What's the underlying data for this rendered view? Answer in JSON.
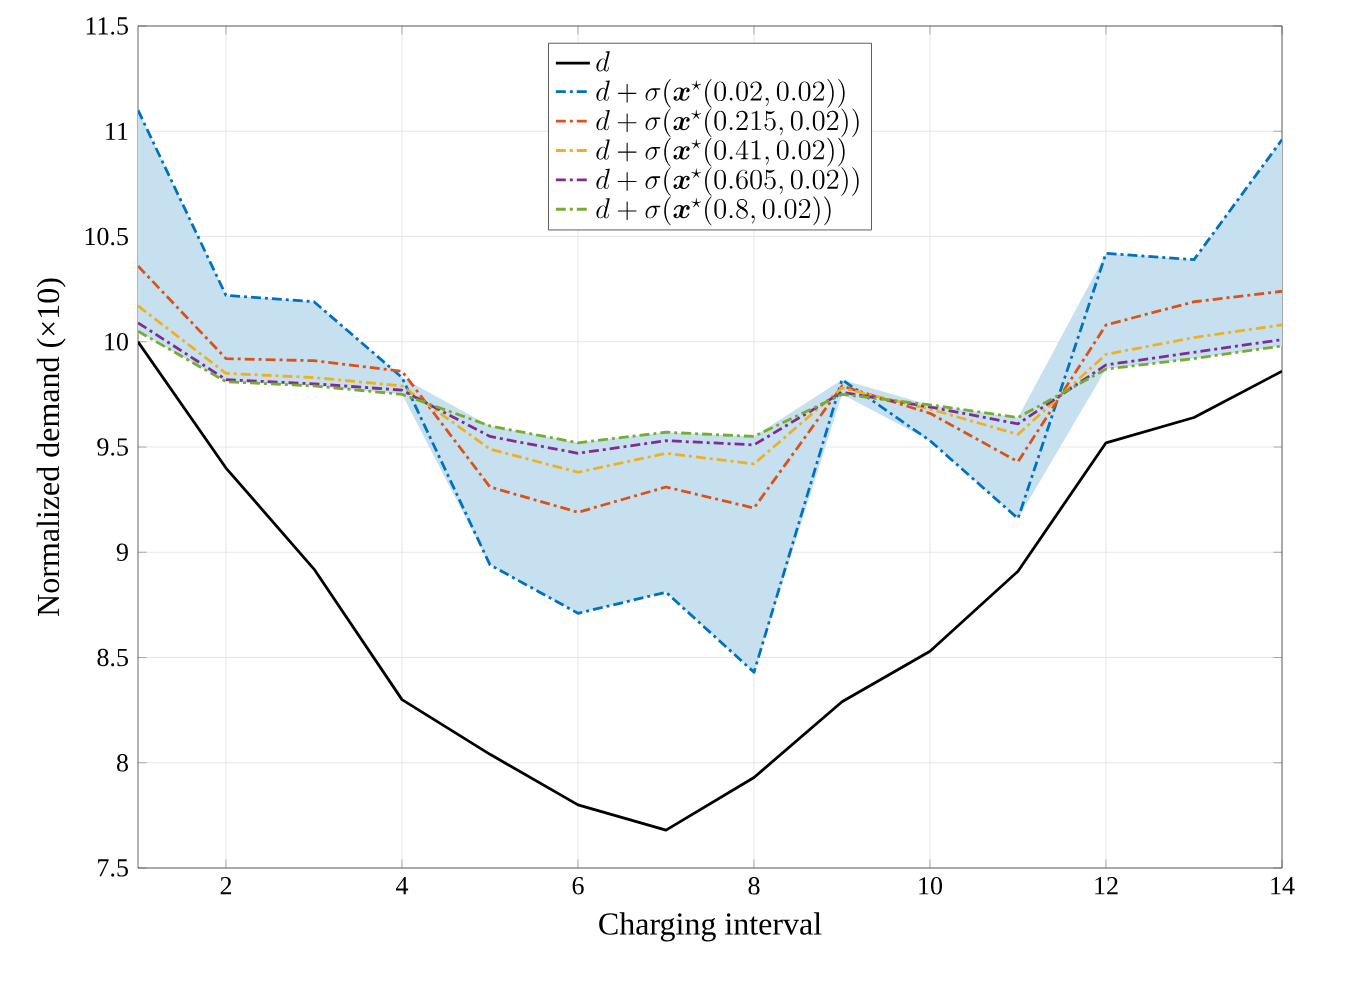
{
  "chart_data": {
    "type": "line",
    "xlabel": "Charging interval",
    "ylabel": "Normalized demand (×10)",
    "x": [
      1,
      2,
      3,
      4,
      5,
      6,
      7,
      8,
      9,
      10,
      11,
      12,
      13,
      14
    ],
    "xlim": [
      1,
      14
    ],
    "xticks": [
      2,
      4,
      6,
      8,
      10,
      12,
      14
    ],
    "ylim": [
      7.5,
      11.5
    ],
    "yticks": [
      7.5,
      8,
      8.5,
      9,
      9.5,
      10,
      10.5,
      11,
      11.5
    ],
    "grid": true,
    "legend": "top",
    "series": [
      {
        "name": "d",
        "color": "#000000",
        "line_style": "solid",
        "values": [
          10.0,
          9.4,
          8.92,
          8.3,
          8.04,
          7.8,
          7.68,
          7.93,
          8.29,
          8.53,
          8.91,
          9.52,
          9.64,
          9.86
        ]
      },
      {
        "name": "d+\\sigma(\\boldsymbol{x}^{\\star}(0.02,0.02))",
        "color": "#0072bd",
        "line_style": "dashed",
        "values": [
          11.1,
          10.22,
          10.19,
          9.83,
          8.94,
          8.71,
          8.81,
          8.43,
          9.82,
          9.53,
          9.16,
          10.42,
          10.39,
          10.96
        ],
        "lower": [
          10.05,
          9.81,
          9.79,
          9.75,
          8.94,
          8.71,
          8.81,
          8.43,
          9.75,
          9.53,
          9.16,
          9.87,
          9.92,
          9.98
        ],
        "upper": [
          11.1,
          10.22,
          10.19,
          9.83,
          9.6,
          9.52,
          9.57,
          9.55,
          9.82,
          9.7,
          9.64,
          10.42,
          10.39,
          10.96
        ]
      },
      {
        "name": "d+\\sigma(\\boldsymbol{x}^{\\star}(0.215,0.02))",
        "color": "#d95319",
        "line_style": "dashed",
        "values": [
          10.36,
          9.92,
          9.91,
          9.86,
          9.31,
          9.19,
          9.31,
          9.21,
          9.79,
          9.66,
          9.43,
          10.08,
          10.19,
          10.24
        ]
      },
      {
        "name": "d+\\sigma(\\boldsymbol{x}^{\\star}(0.41,0.02))",
        "color": "#edb120",
        "line_style": "dashed",
        "values": [
          10.17,
          9.85,
          9.83,
          9.79,
          9.49,
          9.38,
          9.47,
          9.42,
          9.78,
          9.68,
          9.56,
          9.94,
          10.02,
          10.08
        ]
      },
      {
        "name": "d+\\sigma(\\boldsymbol{x}^{\\star}(0.605,0.02))",
        "color": "#7e2f8e",
        "line_style": "dashed",
        "values": [
          10.09,
          9.82,
          9.8,
          9.77,
          9.55,
          9.47,
          9.53,
          9.51,
          9.76,
          9.69,
          9.61,
          9.89,
          9.95,
          10.01
        ]
      },
      {
        "name": "d+\\sigma(\\boldsymbol{x}^{\\star}(0.8,0.02))",
        "color": "#77ac30",
        "line_style": "dashed",
        "values": [
          10.05,
          9.81,
          9.79,
          9.75,
          9.6,
          9.52,
          9.57,
          9.55,
          9.75,
          9.7,
          9.64,
          9.87,
          9.92,
          9.98
        ]
      }
    ]
  }
}
